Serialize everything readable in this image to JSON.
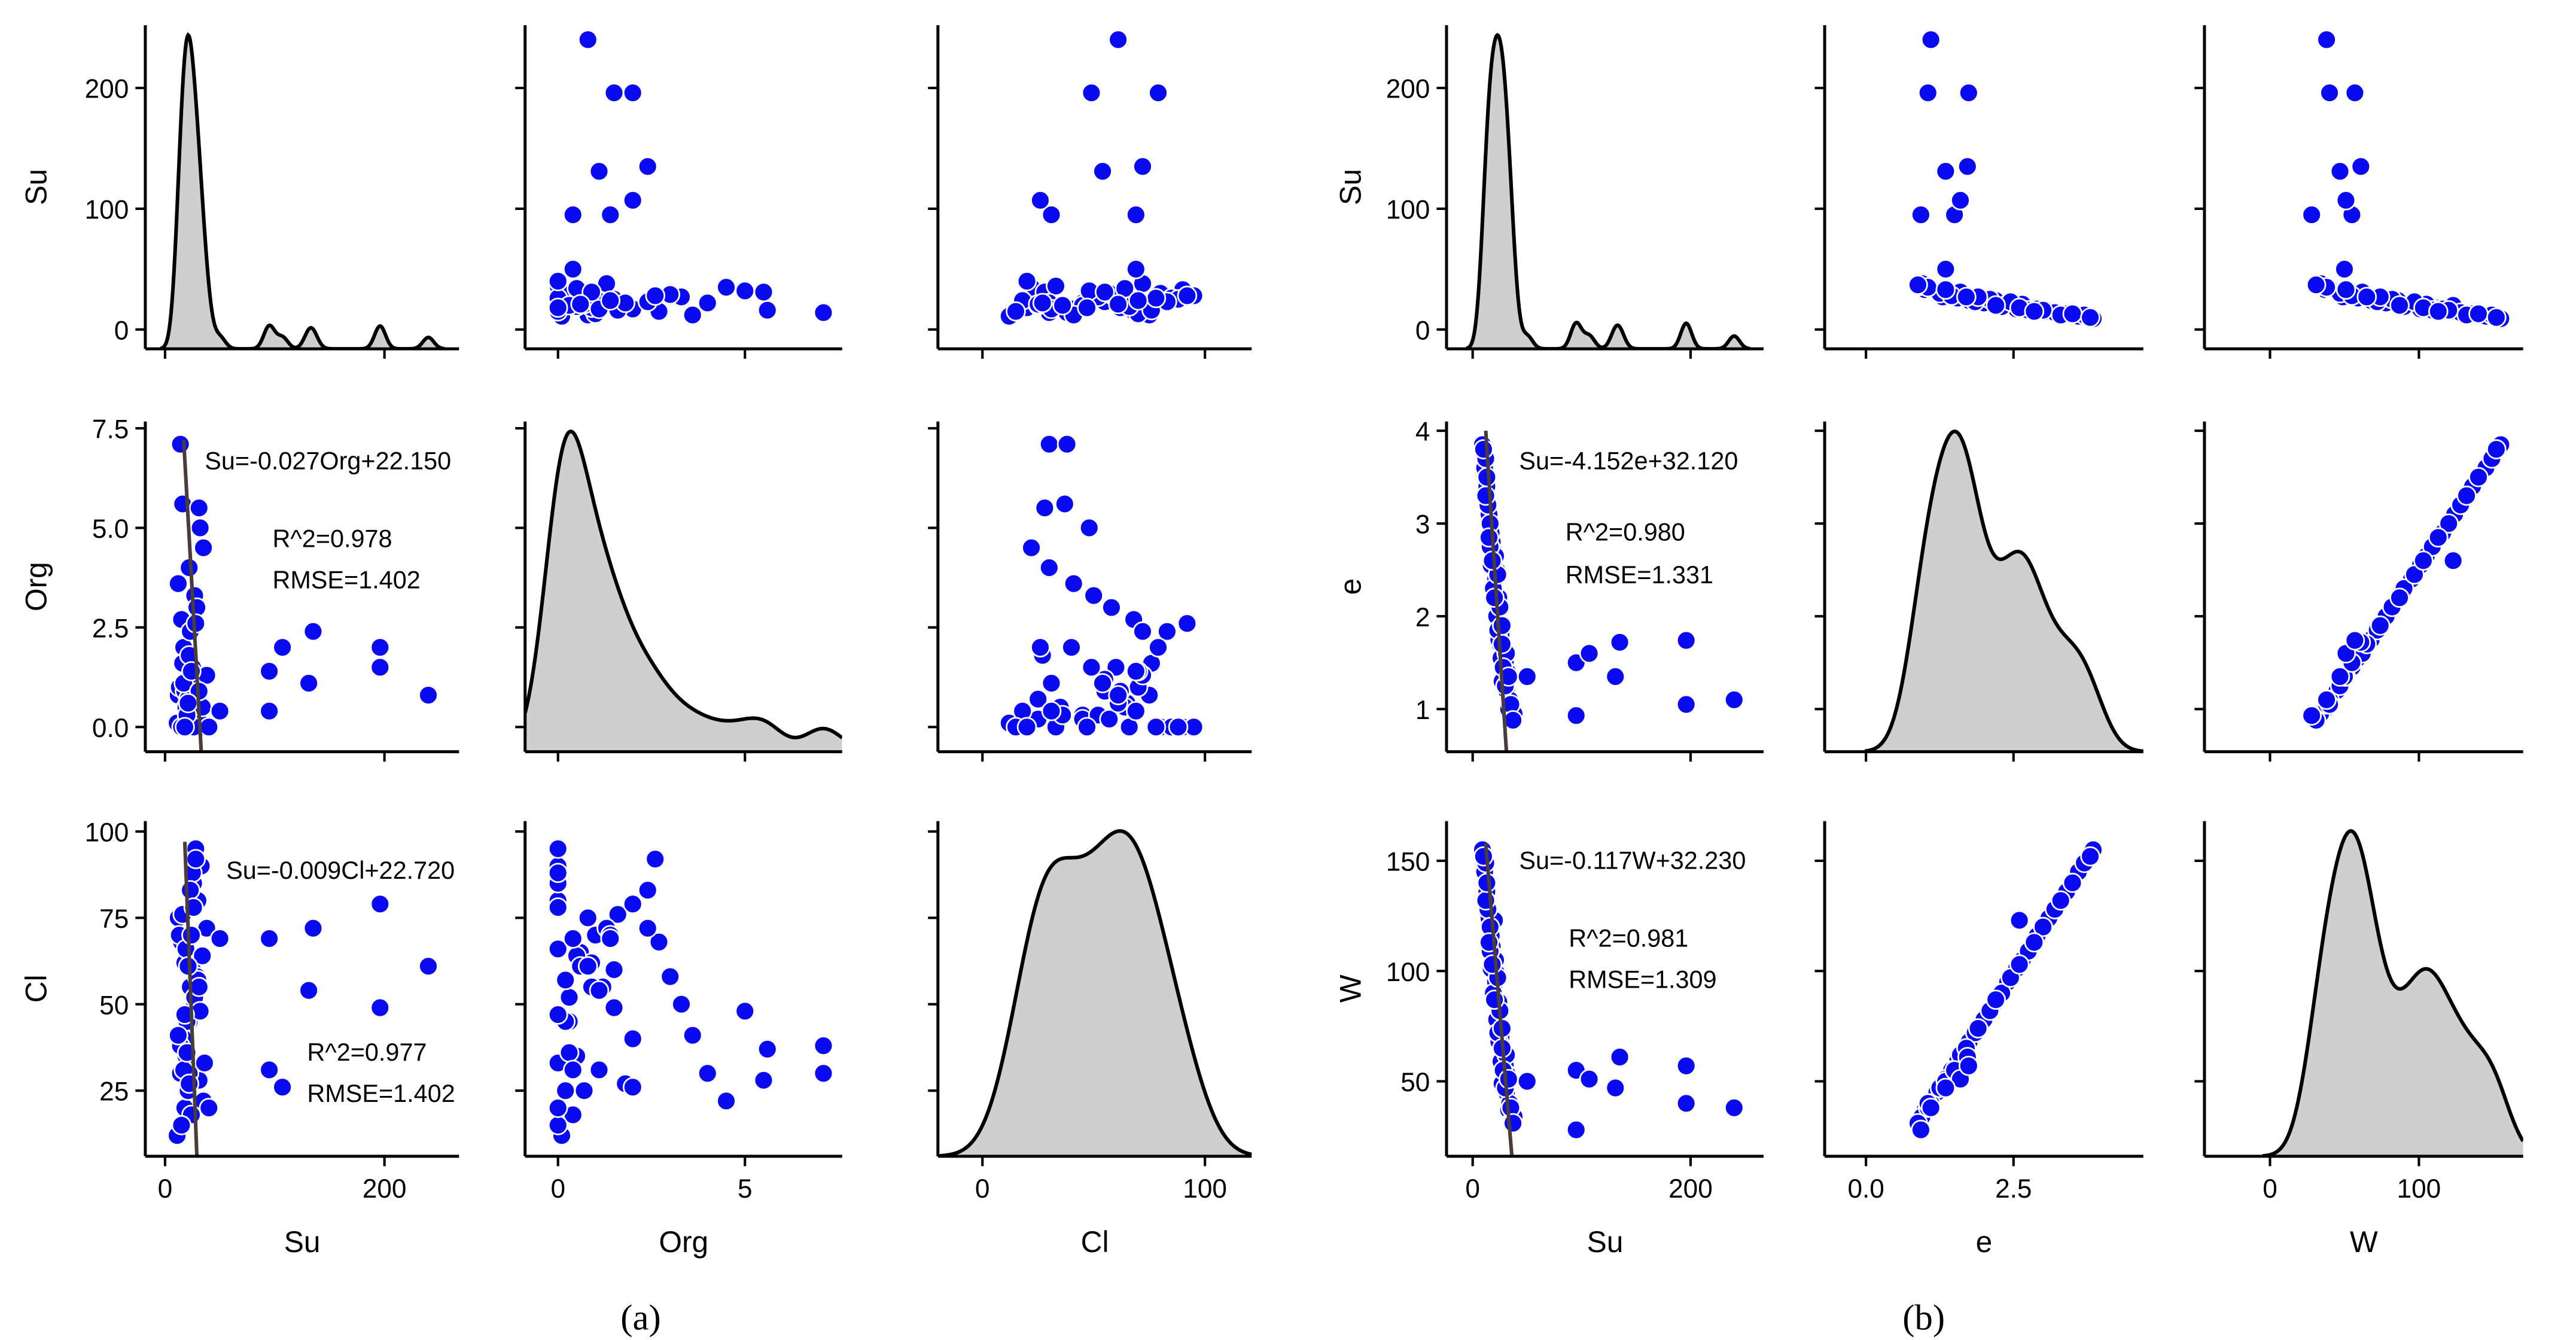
{
  "chart_data": [
    {
      "type": "scatter",
      "kind": "pairplot",
      "title": "(a)",
      "variables": [
        "Su",
        "Org",
        "Cl"
      ],
      "axes": {
        "Su": {
          "label": "Su",
          "xlim": [
            -18,
            268
          ],
          "ylim": [
            -16,
            252
          ],
          "xticks": [
            0,
            200
          ],
          "xtick_labels": [
            "0",
            "200"
          ],
          "yticks": [
            0,
            100,
            200
          ],
          "ytick_labels": [
            "0",
            "100",
            "200"
          ],
          "kde_bandwidth": 5
        },
        "Org": {
          "label": "Org",
          "xlim": [
            -0.88,
            7.6
          ],
          "ylim": [
            -0.62,
            7.67
          ],
          "xticks": [
            0,
            5
          ],
          "xtick_labels": [
            "0",
            "5"
          ],
          "yticks": [
            0,
            2.5,
            5,
            7.5
          ],
          "ytick_labels": [
            "0.0",
            "2.5",
            "5.0",
            "7.5"
          ],
          "kde_bandwidth": 0.5
        },
        "Cl": {
          "label": "Cl",
          "xlim": [
            -20,
            121
          ],
          "ylim": [
            6,
            103
          ],
          "xticks": [
            0,
            100
          ],
          "xtick_labels": [
            "0",
            "100"
          ],
          "yticks": [
            25,
            50,
            75,
            100
          ],
          "ytick_labels": [
            "25",
            "50",
            "75",
            "100"
          ],
          "kde_bandwidth": 11
        }
      },
      "data": {
        "Su": [
          14,
          18,
          22,
          25,
          30,
          12,
          16,
          20,
          27,
          33,
          15,
          19,
          23,
          28,
          35,
          11,
          17,
          21,
          26,
          31,
          13,
          24,
          29,
          36,
          16,
          20,
          22,
          18,
          25,
          38,
          14,
          21,
          27,
          32,
          19,
          23,
          17,
          30,
          12,
          26,
          22,
          34,
          15,
          28,
          20,
          24,
          18,
          31,
          40,
          21,
          50,
          95,
          95,
          107,
          131,
          135,
          196,
          196,
          240
        ],
        "Org": [
          7.1,
          0,
          0.3,
          1.5,
          0,
          0.8,
          5.6,
          0.2,
          3.3,
          0,
          2.7,
          0.5,
          1.2,
          0,
          4.5,
          0.1,
          2.0,
          0.6,
          0,
          5.5,
          1.0,
          0.4,
          3.0,
          0,
          1.6,
          0.2,
          4.0,
          0.9,
          0,
          1.3,
          7.1,
          0.7,
          0.3,
          5.0,
          0,
          2.4,
          1.1,
          0.2,
          3.6,
          0,
          1.8,
          0.5,
          0,
          2.6,
          0.3,
          1.4,
          0,
          0.9,
          0,
          0.6,
          0.4,
          0.4,
          1.4,
          2.0,
          1.1,
          2.4,
          2.0,
          1.5,
          0.8
        ],
        "Cl": [
          30,
          20,
          45,
          60,
          80,
          75,
          37,
          25,
          50,
          90,
          68,
          35,
          55,
          95,
          22,
          12,
          40,
          65,
          85,
          28,
          70,
          18,
          58,
          33,
          76,
          45,
          30,
          62,
          88,
          72,
          38,
          25,
          52,
          48,
          66,
          83,
          31,
          57,
          41,
          78,
          27,
          64,
          15,
          92,
          36,
          70,
          47,
          55,
          20,
          61,
          69,
          31,
          69,
          26,
          54,
          72,
          79,
          49,
          61
        ]
      },
      "regressions": [
        {
          "x": "Su",
          "y": "Org",
          "equation": "Su=-0.027Org+22.150",
          "r2": "R^2=0.978",
          "rmse": "RMSE=1.402",
          "line": [
            [
              17,
              7.2
            ],
            [
              33,
              -0.62
            ]
          ]
        },
        {
          "x": "Su",
          "y": "Cl",
          "equation": "Su=-0.009Cl+22.720",
          "r2": "R^2=0.977",
          "rmse": "RMSE=1.402",
          "line": [
            [
              18,
              97
            ],
            [
              29,
              6
            ]
          ]
        }
      ],
      "colors": {
        "points": "#0a0af2",
        "point_edge": "#ffffff",
        "kde_fill": "#cfcfcf",
        "kde_line": "#000000",
        "reg_line": "#4a3c38"
      }
    },
    {
      "type": "scatter",
      "kind": "pairplot",
      "title": "(b)",
      "variables": [
        "Su",
        "e",
        "W"
      ],
      "axes": {
        "Su": {
          "label": "Su",
          "xlim": [
            -24,
            267
          ],
          "ylim": [
            -16,
            252
          ],
          "xticks": [
            0,
            200
          ],
          "xtick_labels": [
            "0",
            "200"
          ],
          "yticks": [
            0,
            100,
            200
          ],
          "ytick_labels": [
            "0",
            "100",
            "200"
          ],
          "kde_bandwidth": 5
        },
        "e": {
          "label": "e",
          "xlim": [
            -0.7,
            4.7
          ],
          "ylim": [
            0.54,
            4.1
          ],
          "xticks": [
            0,
            2.5
          ],
          "xtick_labels": [
            "0.0",
            "2.5"
          ],
          "yticks": [
            1,
            2,
            3,
            4
          ],
          "ytick_labels": [
            "1",
            "2",
            "3",
            "4"
          ],
          "kde_bandwidth": 0.3
        },
        "W": {
          "label": "W",
          "xlim": [
            -44,
            170
          ],
          "ylim": [
            16,
            168
          ],
          "xticks": [
            0,
            100
          ],
          "xtick_labels": [
            "0",
            "100"
          ],
          "yticks": [
            50,
            100,
            150
          ],
          "ytick_labels": [
            "50",
            "100",
            "150"
          ],
          "kde_bandwidth": 11
        }
      },
      "data": {
        "Su": [
          9,
          31,
          28,
          22,
          33,
          13,
          25,
          24,
          18,
          36,
          15,
          30,
          26,
          20,
          27,
          11,
          22,
          29,
          19,
          34,
          14,
          24,
          21,
          38,
          17,
          26,
          25,
          16,
          32,
          17,
          12,
          23,
          21,
          30,
          19,
          12,
          31,
          23,
          35,
          16,
          27,
          13,
          28,
          18,
          27,
          15,
          33,
          20,
          37,
          10,
          50,
          95,
          95,
          107,
          131,
          135,
          196,
          196,
          240
        ],
        "e": [
          3.85,
          1.2,
          1.6,
          2.5,
          1.0,
          3.4,
          1.7,
          2.2,
          2.8,
          0.9,
          3.1,
          1.5,
          1.8,
          2.6,
          1.3,
          3.6,
          2.0,
          1.65,
          2.7,
          1.1,
          3.2,
          1.75,
          2.4,
          0.95,
          2.9,
          1.55,
          2.1,
          3.0,
          1.4,
          2.55,
          3.7,
          1.85,
          2.65,
          1.25,
          2.3,
          3.3,
          1.6,
          2.45,
          1.05,
          2.75,
          1.9,
          3.5,
          1.45,
          2.6,
          1.7,
          2.85,
          1.35,
          2.2,
          0.88,
          3.8,
          1.35,
          0.93,
          1.5,
          1.6,
          1.35,
          1.72,
          1.05,
          1.74,
          1.1
        ],
        "W": [
          155,
          45,
          61,
          99,
          37,
          136,
          66,
          86,
          111,
          32,
          124,
          57,
          70,
          123,
          49,
          145,
          78,
          63,
          107,
          40,
          128,
          68,
          95,
          34,
          116,
          59,
          82,
          120,
          53,
          101,
          149,
          72,
          105,
          47,
          90,
          132,
          62,
          97,
          38,
          109,
          74,
          140,
          55,
          103,
          65,
          113,
          51,
          87,
          31,
          152,
          50,
          28,
          55,
          51,
          47,
          61,
          40,
          57,
          38
        ]
      },
      "regressions": [
        {
          "x": "Su",
          "y": "e",
          "equation": "Su=-4.152e+32.120",
          "r2": "R^2=0.980",
          "rmse": "RMSE=1.331",
          "line": [
            [
              12,
              4.0
            ],
            [
              31,
              0.54
            ]
          ]
        },
        {
          "x": "Su",
          "y": "W",
          "equation": "Su=-0.117W+32.230",
          "r2": "R^2=0.981",
          "rmse": "RMSE=1.309",
          "line": [
            [
              12,
              158
            ],
            [
              36,
              16
            ]
          ]
        }
      ],
      "colors": {
        "points": "#0a0af2",
        "point_edge": "#ffffff",
        "kde_fill": "#cfcfcf",
        "kde_line": "#000000",
        "reg_line": "#4a3c38"
      }
    }
  ]
}
